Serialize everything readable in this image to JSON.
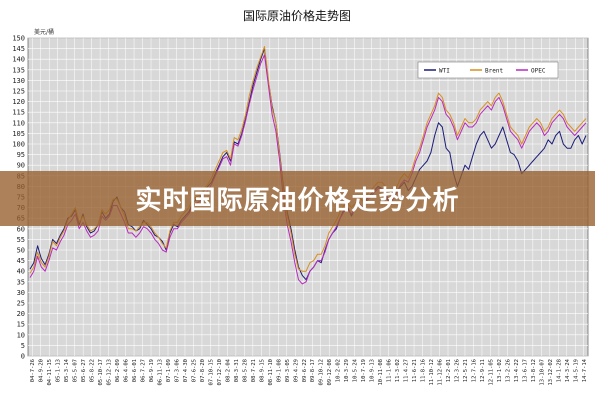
{
  "banner": {
    "text": "实时国际原油价格走势分析"
  },
  "chart_data": {
    "type": "line",
    "title": "国际原油价格走势图",
    "ylabel": "美元/桶",
    "ylim": [
      0,
      150
    ],
    "yticks": [
      0,
      5,
      10,
      15,
      20,
      25,
      30,
      35,
      40,
      45,
      50,
      55,
      60,
      65,
      70,
      75,
      80,
      85,
      90,
      95,
      100,
      105,
      110,
      115,
      120,
      125,
      130,
      135,
      140,
      145,
      150
    ],
    "grid": true,
    "legend": "top-right",
    "x_tick_labels": [
      "04-7-26",
      "04-9-20",
      "04-11-15",
      "05-1-13",
      "05-3-14",
      "05-5-07",
      "05-6-27",
      "05-8-22",
      "05-10-17",
      "05-12-13",
      "06-2-09",
      "06-4-06",
      "06-6-01",
      "06-7-27",
      "06-9-19",
      "06-11-13",
      "07-1-09",
      "07-3-06",
      "07-4-30",
      "07-6-25",
      "07-8-20",
      "07-10-15",
      "07-12-10",
      "08-2-04",
      "08-3-31",
      "08-5-28",
      "08-7-21",
      "08-9-15",
      "08-11-10",
      "09-1-08",
      "09-3-05",
      "09-4-29",
      "09-6-22",
      "09-8-17",
      "09-10-12",
      "09-12-08",
      "10-2-02",
      "10-3-29",
      "10-5-24",
      "10-7-19",
      "10-9-13",
      "10-11-08",
      "11-1-06",
      "11-3-02",
      "11-4-27",
      "11-6-21",
      "11-8-16",
      "11-10-12",
      "11-12-06",
      "12-2-01",
      "12-3-26",
      "12-5-21",
      "12-7-16",
      "12-9-11",
      "12-11-05",
      "13-1-02",
      "13-2-26",
      "13-4-22",
      "13-6-17",
      "13-8-12",
      "13-10-07",
      "13-12-02",
      "14-1-28",
      "14-3-24",
      "14-5-19",
      "14-7-14"
    ],
    "series": [
      {
        "name": "WTI",
        "color": "#1c1c7a",
        "values": [
          41,
          44,
          52,
          46,
          43,
          48,
          55,
          53,
          57,
          60,
          65,
          66,
          69,
          62,
          67,
          61,
          58,
          59,
          62,
          68,
          65,
          67,
          73,
          75,
          70,
          68,
          62,
          61,
          59,
          60,
          64,
          62,
          60,
          57,
          56,
          54,
          50,
          58,
          62,
          61,
          64,
          66,
          68,
          72,
          74,
          75,
          78,
          80,
          82,
          86,
          90,
          94,
          96,
          92,
          101,
          100,
          105,
          112,
          120,
          128,
          134,
          140,
          145,
          130,
          118,
          110,
          96,
          80,
          68,
          60,
          50,
          42,
          38,
          36,
          40,
          42,
          45,
          44,
          50,
          55,
          58,
          60,
          65,
          69,
          70,
          66,
          70,
          72,
          70,
          74,
          76,
          78,
          80,
          79,
          76,
          72,
          74,
          78,
          80,
          82,
          78,
          80,
          84,
          88,
          90,
          92,
          96,
          104,
          110,
          108,
          98,
          96,
          86,
          80,
          85,
          90,
          88,
          94,
          100,
          104,
          106,
          102,
          98,
          100,
          104,
          108,
          102,
          96,
          95,
          92,
          86,
          88,
          90,
          92,
          94,
          96,
          98,
          102,
          100,
          104,
          106,
          100,
          98,
          98,
          102,
          104,
          100,
          104
        ],
        "colors_note": "dark navy"
      },
      {
        "name": "Brent",
        "color": "#d8901e",
        "values": [
          39,
          42,
          49,
          44,
          42,
          47,
          54,
          52,
          56,
          59,
          64,
          67,
          70,
          63,
          66,
          62,
          59,
          60,
          62,
          69,
          67,
          69,
          74,
          74,
          70,
          66,
          60,
          60,
          59,
          61,
          63,
          63,
          61,
          58,
          56,
          53,
          51,
          59,
          63,
          63,
          66,
          68,
          70,
          74,
          75,
          76,
          79,
          81,
          84,
          88,
          92,
          96,
          97,
          93,
          103,
          102,
          107,
          114,
          123,
          130,
          136,
          141,
          146,
          131,
          117,
          110,
          95,
          78,
          66,
          58,
          48,
          41,
          40,
          40,
          44,
          45,
          48,
          48,
          52,
          58,
          61,
          64,
          68,
          71,
          72,
          70,
          72,
          75,
          73,
          76,
          78,
          80,
          82,
          82,
          80,
          76,
          77,
          80,
          84,
          86,
          84,
          88,
          94,
          98,
          104,
          110,
          114,
          118,
          124,
          122,
          116,
          114,
          110,
          104,
          108,
          112,
          110,
          110,
          112,
          116,
          118,
          120,
          118,
          122,
          124,
          120,
          114,
          108,
          106,
          104,
          100,
          104,
          108,
          110,
          112,
          110,
          106,
          108,
          112,
          114,
          116,
          114,
          110,
          108,
          106,
          108,
          110,
          112
        ],
        "colors_note": "orange"
      },
      {
        "name": "OPEC",
        "color": "#b82ac0",
        "values": [
          37,
          40,
          47,
          42,
          40,
          45,
          51,
          50,
          54,
          57,
          62,
          64,
          67,
          60,
          63,
          59,
          56,
          57,
          59,
          66,
          64,
          66,
          71,
          71,
          67,
          63,
          58,
          58,
          56,
          58,
          61,
          60,
          58,
          55,
          53,
          50,
          49,
          56,
          60,
          60,
          63,
          65,
          67,
          71,
          72,
          73,
          76,
          78,
          81,
          85,
          89,
          93,
          94,
          90,
          100,
          99,
          104,
          111,
          119,
          126,
          132,
          138,
          142,
          128,
          114,
          106,
          92,
          74,
          62,
          54,
          44,
          36,
          34,
          35,
          40,
          42,
          45,
          45,
          49,
          55,
          58,
          61,
          65,
          68,
          69,
          67,
          69,
          72,
          70,
          73,
          75,
          77,
          79,
          79,
          77,
          73,
          74,
          77,
          81,
          83,
          82,
          86,
          92,
          96,
          102,
          108,
          112,
          116,
          122,
          120,
          114,
          112,
          108,
          102,
          106,
          110,
          108,
          108,
          110,
          114,
          116,
          118,
          116,
          120,
          122,
          118,
          112,
          106,
          104,
          102,
          98,
          102,
          106,
          108,
          110,
          108,
          104,
          106,
          110,
          112,
          114,
          112,
          108,
          106,
          104,
          106,
          108,
          110
        ],
        "colors_note": "magenta"
      }
    ]
  }
}
